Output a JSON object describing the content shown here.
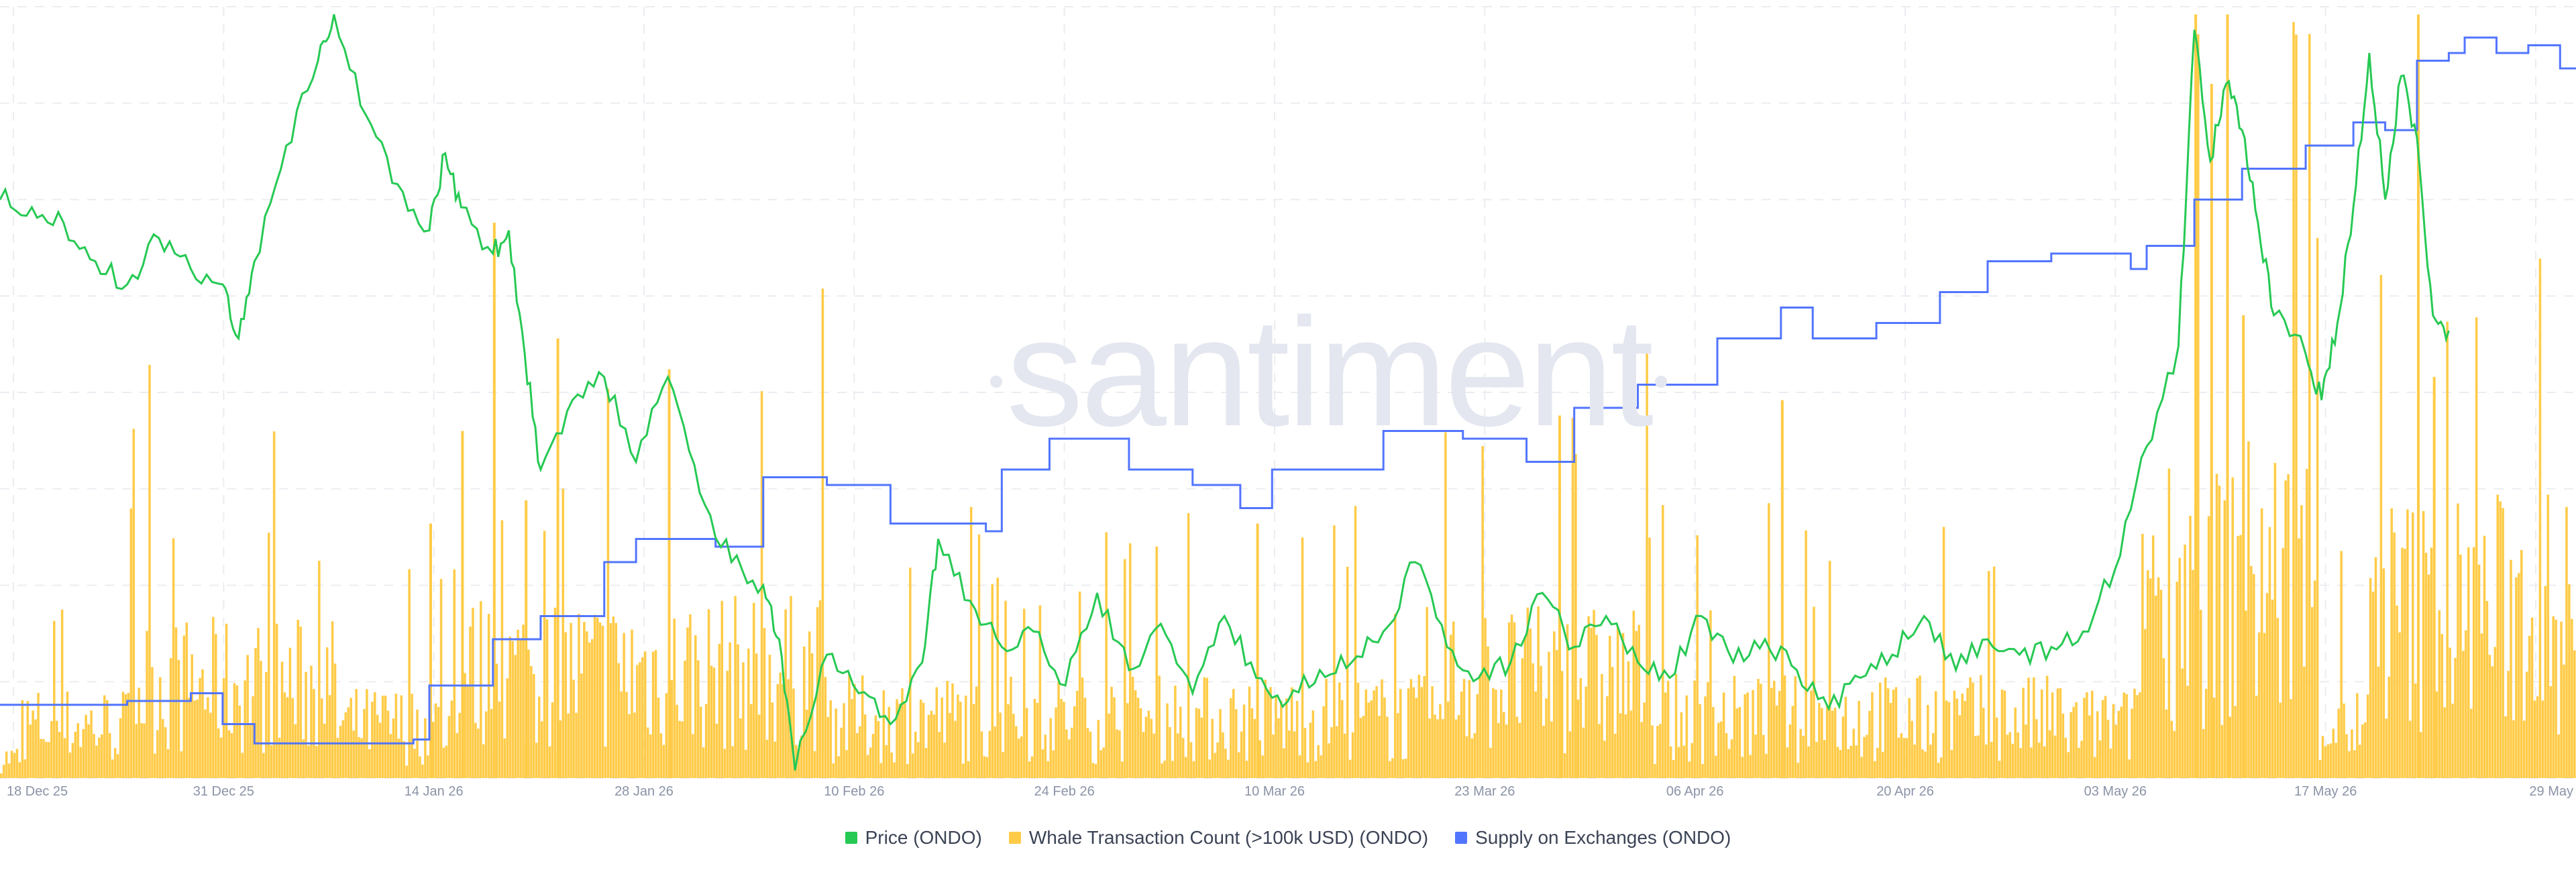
{
  "watermark": "santiment",
  "colors": {
    "price": "#26c953",
    "whale": "#ffcb47",
    "supply": "#5275ff",
    "grid": "#ebedf1",
    "tick_text": "#8a93a6"
  },
  "legend": [
    {
      "label": "Price (ONDO)",
      "color": "#26c953"
    },
    {
      "label": "Whale Transaction Count (>100k USD) (ONDO)",
      "color": "#ffcb47"
    },
    {
      "label": "Supply on Exchanges (ONDO)",
      "color": "#5275ff"
    }
  ],
  "chart_data": {
    "type": "line",
    "title": "",
    "x_range": [
      "2025-12-18",
      "2026-05-29"
    ],
    "x_ticks": [
      "18 Dec 25",
      "31 Dec 25",
      "14 Jan 26",
      "28 Jan 26",
      "10 Feb 26",
      "24 Feb 26",
      "10 Mar 26",
      "23 Mar 26",
      "06 Apr 26",
      "20 Apr 26",
      "03 May 26",
      "17 May 26",
      "29 May"
    ],
    "grid": true,
    "legend_position": "bottom-center",
    "series": [
      {
        "name": "Price (ONDO)",
        "type": "line",
        "scale": "relative (0 = chart bottom, 1 = chart top)",
        "points": [
          [
            "2025-12-18",
            0.75
          ],
          [
            "2025-12-20",
            0.74
          ],
          [
            "2025-12-22",
            0.72
          ],
          [
            "2025-12-24",
            0.67
          ],
          [
            "2025-12-26",
            0.64
          ],
          [
            "2025-12-28",
            0.7
          ],
          [
            "2025-12-30",
            0.66
          ],
          [
            "2026-01-01",
            0.64
          ],
          [
            "2026-01-02",
            0.57
          ],
          [
            "2026-01-03",
            0.67
          ],
          [
            "2026-01-05",
            0.82
          ],
          [
            "2026-01-07",
            0.93
          ],
          [
            "2026-01-08",
            0.99
          ],
          [
            "2026-01-10",
            0.86
          ],
          [
            "2026-01-12",
            0.77
          ],
          [
            "2026-01-14",
            0.71
          ],
          [
            "2026-01-15",
            0.81
          ],
          [
            "2026-01-16",
            0.74
          ],
          [
            "2026-01-18",
            0.68
          ],
          [
            "2026-01-19",
            0.71
          ],
          [
            "2026-01-20",
            0.55
          ],
          [
            "2026-01-21",
            0.4
          ],
          [
            "2026-01-23",
            0.49
          ],
          [
            "2026-01-25",
            0.52
          ],
          [
            "2026-01-27",
            0.41
          ],
          [
            "2026-01-29",
            0.52
          ],
          [
            "2026-01-31",
            0.37
          ],
          [
            "2026-02-02",
            0.28
          ],
          [
            "2026-02-04",
            0.25
          ],
          [
            "2026-02-05",
            0.18
          ],
          [
            "2026-02-06",
            0.01
          ],
          [
            "2026-02-08",
            0.16
          ],
          [
            "2026-02-10",
            0.11
          ],
          [
            "2026-02-12",
            0.07
          ],
          [
            "2026-02-14",
            0.15
          ],
          [
            "2026-02-15",
            0.31
          ],
          [
            "2026-02-17",
            0.23
          ],
          [
            "2026-02-19",
            0.17
          ],
          [
            "2026-02-21",
            0.19
          ],
          [
            "2026-02-23",
            0.12
          ],
          [
            "2026-02-25",
            0.24
          ],
          [
            "2026-02-27",
            0.14
          ],
          [
            "2026-03-01",
            0.2
          ],
          [
            "2026-03-03",
            0.11
          ],
          [
            "2026-03-05",
            0.21
          ],
          [
            "2026-03-07",
            0.13
          ],
          [
            "2026-03-09",
            0.1
          ],
          [
            "2026-03-11",
            0.14
          ],
          [
            "2026-03-13",
            0.15
          ],
          [
            "2026-03-15",
            0.19
          ],
          [
            "2026-03-17",
            0.28
          ],
          [
            "2026-03-19",
            0.17
          ],
          [
            "2026-03-21",
            0.13
          ],
          [
            "2026-03-23",
            0.15
          ],
          [
            "2026-03-25",
            0.24
          ],
          [
            "2026-03-27",
            0.17
          ],
          [
            "2026-03-29",
            0.21
          ],
          [
            "2026-03-31",
            0.15
          ],
          [
            "2026-04-02",
            0.13
          ],
          [
            "2026-04-04",
            0.21
          ],
          [
            "2026-04-06",
            0.15
          ],
          [
            "2026-04-08",
            0.18
          ],
          [
            "2026-04-10",
            0.14
          ],
          [
            "2026-04-12",
            0.09
          ],
          [
            "2026-04-14",
            0.13
          ],
          [
            "2026-04-16",
            0.16
          ],
          [
            "2026-04-18",
            0.21
          ],
          [
            "2026-04-20",
            0.14
          ],
          [
            "2026-04-22",
            0.18
          ],
          [
            "2026-04-24",
            0.16
          ],
          [
            "2026-04-26",
            0.17
          ],
          [
            "2026-04-28",
            0.19
          ],
          [
            "2026-04-30",
            0.27
          ],
          [
            "2026-05-02",
            0.43
          ],
          [
            "2026-05-04",
            0.56
          ],
          [
            "2026-05-05",
            0.97
          ],
          [
            "2026-05-06",
            0.8
          ],
          [
            "2026-05-07",
            0.9
          ],
          [
            "2026-05-08",
            0.84
          ],
          [
            "2026-05-09",
            0.72
          ],
          [
            "2026-05-10",
            0.6
          ],
          [
            "2026-05-12",
            0.55
          ],
          [
            "2026-05-13",
            0.49
          ],
          [
            "2026-05-14",
            0.59
          ],
          [
            "2026-05-15",
            0.74
          ],
          [
            "2026-05-16",
            0.94
          ],
          [
            "2026-05-17",
            0.75
          ],
          [
            "2026-05-18",
            0.91
          ],
          [
            "2026-05-19",
            0.83
          ],
          [
            "2026-05-20",
            0.6
          ],
          [
            "2026-05-21",
            0.58
          ]
        ]
      },
      {
        "name": "Whale Transaction Count (>100k USD) (ONDO)",
        "type": "bar",
        "scale": "relative (0 = chart bottom, 1 = chart top)",
        "peaks": [
          [
            "2026-01-14",
            0.33
          ],
          [
            "2026-01-16",
            0.45
          ],
          [
            "2026-01-18",
            0.72
          ],
          [
            "2026-01-20",
            0.36
          ],
          [
            "2026-01-22",
            0.57
          ],
          [
            "2026-01-29",
            0.53
          ],
          [
            "2026-03-07",
            0.33
          ],
          [
            "2026-03-26",
            0.47
          ],
          [
            "2026-03-27",
            0.42
          ],
          [
            "2026-04-09",
            0.49
          ],
          [
            "2026-05-05",
            0.99
          ],
          [
            "2026-05-06",
            0.9
          ],
          [
            "2026-05-07",
            0.99
          ],
          [
            "2026-05-08",
            0.6
          ],
          [
            "2026-05-19",
            0.99
          ],
          [
            "2026-05-20",
            0.52
          ]
        ]
      },
      {
        "name": "Supply on Exchanges (ONDO)",
        "type": "step",
        "scale": "relative (0 = chart bottom, 1 = chart top)",
        "points": [
          [
            "2025-12-18",
            0.095
          ],
          [
            "2025-12-26",
            0.1
          ],
          [
            "2025-12-30",
            0.11
          ],
          [
            "2026-01-01",
            0.07
          ],
          [
            "2026-01-03",
            0.045
          ],
          [
            "2026-01-13",
            0.05
          ],
          [
            "2026-01-14",
            0.12
          ],
          [
            "2026-01-18",
            0.18
          ],
          [
            "2026-01-21",
            0.21
          ],
          [
            "2026-01-25",
            0.28
          ],
          [
            "2026-01-27",
            0.31
          ],
          [
            "2026-02-01",
            0.3
          ],
          [
            "2026-02-04",
            0.39
          ],
          [
            "2026-02-08",
            0.38
          ],
          [
            "2026-02-12",
            0.33
          ],
          [
            "2026-02-18",
            0.32
          ],
          [
            "2026-02-19",
            0.4
          ],
          [
            "2026-02-22",
            0.44
          ],
          [
            "2026-02-27",
            0.4
          ],
          [
            "2026-03-03",
            0.38
          ],
          [
            "2026-03-06",
            0.35
          ],
          [
            "2026-03-08",
            0.4
          ],
          [
            "2026-03-15",
            0.45
          ],
          [
            "2026-03-20",
            0.44
          ],
          [
            "2026-03-24",
            0.41
          ],
          [
            "2026-03-27",
            0.48
          ],
          [
            "2026-03-31",
            0.51
          ],
          [
            "2026-04-05",
            0.57
          ],
          [
            "2026-04-09",
            0.61
          ],
          [
            "2026-04-11",
            0.57
          ],
          [
            "2026-04-15",
            0.59
          ],
          [
            "2026-04-19",
            0.63
          ],
          [
            "2026-04-22",
            0.67
          ],
          [
            "2026-04-26",
            0.68
          ],
          [
            "2026-05-01",
            0.66
          ],
          [
            "2026-05-02",
            0.69
          ],
          [
            "2026-05-05",
            0.75
          ],
          [
            "2026-05-08",
            0.79
          ],
          [
            "2026-05-12",
            0.82
          ],
          [
            "2026-05-15",
            0.85
          ],
          [
            "2026-05-17",
            0.84
          ],
          [
            "2026-05-19",
            0.93
          ],
          [
            "2026-05-21",
            0.94
          ],
          [
            "2026-05-22",
            0.96
          ],
          [
            "2026-05-24",
            0.94
          ],
          [
            "2026-05-26",
            0.95
          ],
          [
            "2026-05-28",
            0.92
          ]
        ]
      }
    ]
  }
}
